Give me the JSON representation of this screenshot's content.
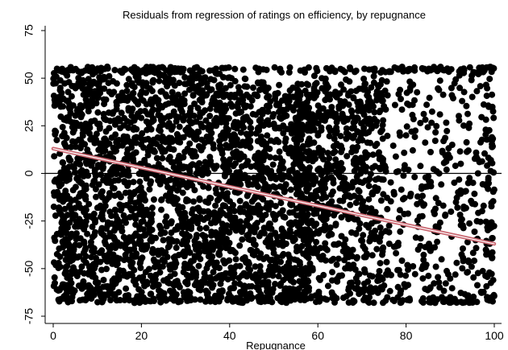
{
  "chart_data": {
    "type": "scatter",
    "title": "Residuals from regression of ratings on efficiency, by repugnance",
    "xlabel": "Repugnance",
    "ylabel": "",
    "xlim": [
      0,
      100
    ],
    "ylim": [
      -75,
      75
    ],
    "x_ticks": [
      0,
      20,
      40,
      60,
      80,
      100
    ],
    "y_ticks": [
      -75,
      -50,
      -25,
      0,
      25,
      50,
      75
    ],
    "grid": false,
    "reference_line_y": 0,
    "colors": {
      "points": "#000000",
      "fit_line": "#c8646e",
      "fit_line_highlight": "#ffffff"
    },
    "series": [
      {
        "kind": "points",
        "description_density": "dense for x in 0-60, sparser for x in 60-100",
        "y_min": -68,
        "y_max": 56
      },
      {
        "kind": "fitted_line",
        "x": [
          0,
          100
        ],
        "y": [
          13,
          -37
        ]
      }
    ]
  }
}
